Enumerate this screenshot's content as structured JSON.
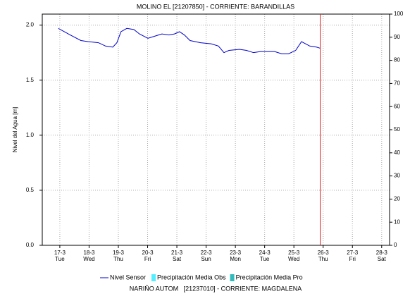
{
  "chart_data": {
    "type": "line",
    "title": "MOLINO EL [21207850] - CORRIENTE: BARANDILLAS",
    "ylabel": "Nivel del Agua [m]",
    "footer": "NARIÑO AUTOM   [21237010] - CORRIENTE: MAGDALENA",
    "x": [
      16.95,
      17.36,
      17.72,
      17.96,
      18.32,
      18.56,
      18.81,
      18.95,
      19.09,
      19.29,
      19.53,
      19.72,
      20.01,
      20.25,
      20.49,
      20.73,
      20.92,
      21.09,
      21.26,
      21.45,
      21.81,
      22.17,
      22.42,
      22.61,
      22.78,
      23.14,
      23.38,
      23.62,
      23.86,
      24.1,
      24.34,
      24.58,
      24.82,
      25.06,
      25.26,
      25.54,
      25.78,
      25.9
    ],
    "series": [
      {
        "name": "Nivel Sensor",
        "color": "#0000cc",
        "values": [
          1.97,
          1.91,
          1.86,
          1.85,
          1.84,
          1.81,
          1.8,
          1.84,
          1.94,
          1.97,
          1.96,
          1.92,
          1.88,
          1.9,
          1.92,
          1.91,
          1.92,
          1.94,
          1.91,
          1.86,
          1.84,
          1.83,
          1.81,
          1.75,
          1.77,
          1.78,
          1.77,
          1.75,
          1.76,
          1.76,
          1.76,
          1.74,
          1.74,
          1.77,
          1.85,
          1.81,
          1.8,
          1.79
        ]
      }
    ],
    "legend_extra": [
      {
        "name": "Precipitación Media Obs",
        "color": "#55eeff"
      },
      {
        "name": "Precipitación Media Pro",
        "color": "#33bbbb"
      }
    ],
    "xlim": [
      16.4,
      28.27
    ],
    "xticks": [
      {
        "value": 17,
        "label": "17-3"
      },
      {
        "value": 18,
        "label": "18-3"
      },
      {
        "value": 19,
        "label": "19-3"
      },
      {
        "value": 20,
        "label": "20-3"
      },
      {
        "value": 21,
        "label": "21-3"
      },
      {
        "value": 22,
        "label": "22-3"
      },
      {
        "value": 23,
        "label": "23-3"
      },
      {
        "value": 24,
        "label": "24-3"
      },
      {
        "value": 25,
        "label": "25-3"
      },
      {
        "value": 26,
        "label": "26-3"
      },
      {
        "value": 27,
        "label": "27-3"
      },
      {
        "value": 28,
        "label": "28-3"
      }
    ],
    "xtick_days": [
      "Tue",
      "Wed",
      "Thu",
      "Fri",
      "Sat",
      "Sun",
      "Mon",
      "Tue",
      "Wed",
      "Thu",
      "Fri",
      "Sat"
    ],
    "ylim": [
      0,
      2.1
    ],
    "yticks": [
      {
        "value": 0,
        "label": "0.0"
      },
      0.5,
      {
        "value": 1,
        "label": "1.0"
      },
      1.5,
      {
        "value": 2,
        "label": "2.0"
      }
    ],
    "y2lim": [
      0,
      100
    ],
    "y2ticks": [
      0,
      10,
      20,
      30,
      40,
      50,
      60,
      70,
      80,
      90,
      100
    ],
    "vline": {
      "x": 25.9,
      "color": "#dd2222"
    },
    "grid": true
  }
}
